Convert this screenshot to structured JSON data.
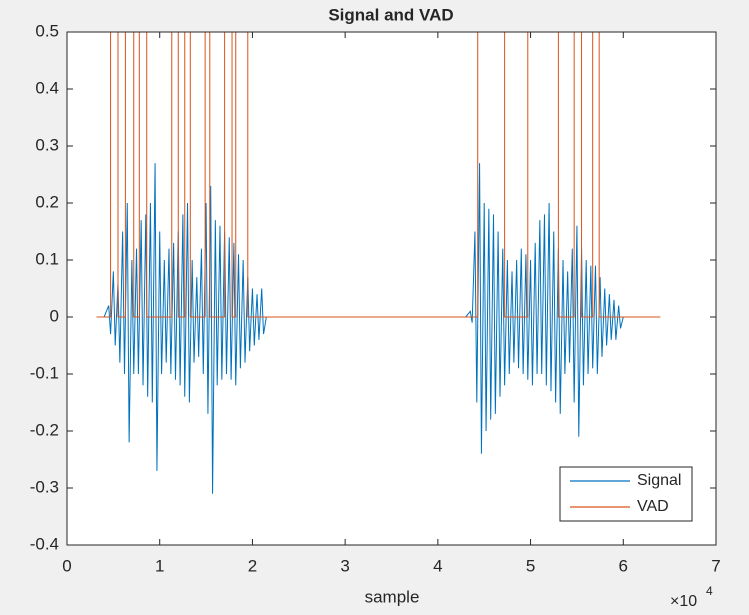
{
  "chart_data": {
    "type": "line",
    "title": "Signal and VAD",
    "xlabel": "sample",
    "x_multiplier": {
      "base": "×10",
      "exponent": "4"
    },
    "xlim": [
      0,
      7
    ],
    "xticks": [
      0,
      1,
      2,
      3,
      4,
      5,
      6,
      7
    ],
    "ylim": [
      -0.4,
      0.5
    ],
    "yticks": [
      -0.4,
      -0.3,
      -0.2,
      -0.1,
      0,
      0.1,
      0.2,
      0.3,
      0.4,
      0.5
    ],
    "legend": "southeast",
    "grid": false,
    "series": [
      {
        "name": "Signal",
        "color": "#0072bd",
        "x": [
          0.32,
          0.4,
          0.45,
          0.47,
          0.5,
          0.52,
          0.55,
          0.57,
          0.6,
          0.62,
          0.65,
          0.67,
          0.7,
          0.72,
          0.75,
          0.77,
          0.8,
          0.82,
          0.85,
          0.87,
          0.9,
          0.92,
          0.95,
          0.97,
          1.0,
          1.02,
          1.05,
          1.07,
          1.1,
          1.12,
          1.15,
          1.17,
          1.2,
          1.22,
          1.25,
          1.27,
          1.3,
          1.32,
          1.35,
          1.37,
          1.4,
          1.42,
          1.45,
          1.47,
          1.5,
          1.52,
          1.55,
          1.57,
          1.6,
          1.62,
          1.65,
          1.67,
          1.7,
          1.72,
          1.75,
          1.77,
          1.8,
          1.82,
          1.85,
          1.87,
          1.9,
          1.92,
          1.95,
          1.97,
          2.0,
          2.02,
          2.05,
          2.07,
          2.1,
          2.12,
          2.15,
          4.3,
          4.35,
          4.37,
          4.4,
          4.42,
          4.45,
          4.47,
          4.5,
          4.52,
          4.55,
          4.57,
          4.6,
          4.62,
          4.65,
          4.67,
          4.7,
          4.72,
          4.75,
          4.77,
          4.8,
          4.82,
          4.85,
          4.87,
          4.9,
          4.92,
          4.95,
          4.97,
          5.0,
          5.02,
          5.05,
          5.07,
          5.1,
          5.12,
          5.15,
          5.17,
          5.2,
          5.22,
          5.25,
          5.27,
          5.3,
          5.32,
          5.35,
          5.37,
          5.4,
          5.42,
          5.45,
          5.47,
          5.5,
          5.52,
          5.55,
          5.57,
          5.6,
          5.62,
          5.65,
          5.67,
          5.7,
          5.72,
          5.75,
          5.77,
          5.8,
          5.82,
          5.85,
          5.87,
          5.9,
          5.92,
          5.95,
          5.97,
          6.0
        ],
        "values": [
          0,
          0,
          0.02,
          -0.03,
          0.08,
          -0.05,
          0.06,
          -0.08,
          0.15,
          -0.1,
          0.2,
          -0.22,
          0.1,
          -0.1,
          0.12,
          -0.1,
          0.17,
          -0.12,
          0.18,
          -0.14,
          0.2,
          -0.15,
          0.27,
          -0.27,
          0.15,
          -0.1,
          0.1,
          -0.08,
          0.12,
          -0.1,
          0.13,
          -0.11,
          0.15,
          -0.12,
          0.18,
          -0.14,
          0.2,
          -0.15,
          0.1,
          -0.08,
          0.07,
          -0.07,
          0.12,
          -0.1,
          0.2,
          -0.17,
          0.23,
          -0.31,
          0.17,
          -0.12,
          0.16,
          -0.11,
          0.15,
          -0.1,
          0.14,
          -0.11,
          0.13,
          -0.12,
          0.11,
          -0.09,
          0.1,
          -0.08,
          0.07,
          -0.06,
          0.05,
          -0.05,
          0.04,
          -0.04,
          0.05,
          -0.03,
          0,
          0,
          0.01,
          -0.01,
          0.15,
          -0.15,
          0.27,
          -0.24,
          0.2,
          -0.2,
          0.19,
          -0.18,
          0.18,
          -0.17,
          0.15,
          -0.14,
          0.12,
          -0.12,
          0.1,
          -0.1,
          0.08,
          -0.08,
          0.1,
          -0.09,
          0.12,
          -0.1,
          0.11,
          -0.11,
          0.1,
          -0.12,
          0.13,
          -0.1,
          0.17,
          -0.1,
          0.18,
          -0.12,
          0.2,
          -0.13,
          0.15,
          -0.15,
          0.12,
          -0.17,
          0.1,
          -0.1,
          0.08,
          -0.08,
          0.12,
          -0.15,
          0.16,
          -0.21,
          0.12,
          -0.12,
          0.1,
          -0.1,
          0.09,
          -0.09,
          0.09,
          -0.1,
          0.07,
          -0.07,
          0.05,
          -0.05,
          0.04,
          -0.04,
          0.03,
          -0.04,
          0.02,
          -0.02,
          0
        ]
      },
      {
        "name": "VAD",
        "color": "#d95319",
        "x": [
          0.32,
          0.47,
          0.47,
          0.55,
          0.55,
          0.63,
          0.63,
          0.72,
          0.72,
          0.78,
          0.78,
          0.86,
          0.86,
          1.13,
          1.13,
          1.2,
          1.2,
          1.27,
          1.27,
          1.33,
          1.33,
          1.49,
          1.49,
          1.54,
          1.54,
          1.7,
          1.7,
          1.78,
          1.78,
          1.82,
          1.82,
          1.95,
          1.95,
          4.43,
          4.43,
          4.72,
          4.72,
          4.97,
          4.97,
          5.3,
          5.3,
          5.47,
          5.47,
          5.55,
          5.55,
          5.67,
          5.67,
          5.74,
          5.74,
          6.4
        ],
        "values": [
          0,
          0,
          0.5,
          0.5,
          0,
          0,
          0.5,
          0.5,
          0,
          0,
          0.5,
          0.5,
          0,
          0,
          0.5,
          0.5,
          0,
          0,
          0.5,
          0.5,
          0,
          0,
          0.5,
          0.5,
          0,
          0,
          0.5,
          0.5,
          0,
          0,
          0.5,
          0.5,
          0,
          0,
          0.5,
          0.5,
          0,
          0,
          0.5,
          0.5,
          0,
          0,
          0.5,
          0.5,
          0,
          0,
          0.5,
          0.5,
          0,
          0
        ]
      }
    ]
  }
}
